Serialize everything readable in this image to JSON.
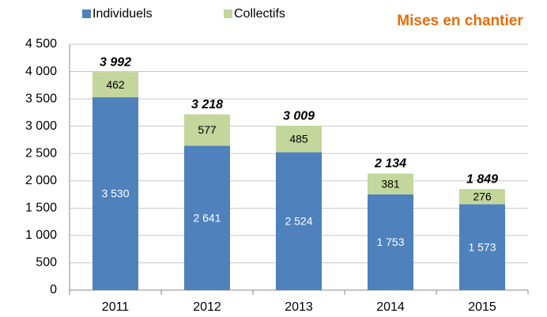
{
  "chart_data": {
    "type": "stacked_bar",
    "title": "Mises en chantier",
    "categories": [
      "2011",
      "2012",
      "2013",
      "2014",
      "2015"
    ],
    "series": [
      {
        "name": "Individuels",
        "color": "#4f81bd",
        "values": [
          3530,
          2641,
          2524,
          1753,
          1573
        ],
        "value_labels": [
          "3 530",
          "2 641",
          "2 524",
          "1 753",
          "1 573"
        ]
      },
      {
        "name": "Collectifs",
        "color": "#c3d69b",
        "values": [
          462,
          577,
          485,
          381,
          276
        ]
      }
    ],
    "totals": [
      3992,
      3218,
      3009,
      2134,
      1849
    ],
    "total_labels": [
      "3 992",
      "3 218",
      "3 009",
      "2 134",
      "1 849"
    ],
    "ylim": [
      0,
      4500
    ],
    "yticks": [
      0,
      500,
      {
        "value": 1000,
        "label": "1 000"
      },
      {
        "value": 1500,
        "label": "1 500"
      },
      {
        "value": 2000,
        "label": "2 000"
      },
      {
        "value": 2500,
        "label": "2 500"
      },
      {
        "value": 3000,
        "label": "3 000"
      },
      {
        "value": 3500,
        "label": "3 500"
      },
      {
        "value": 4000,
        "label": "4 000"
      },
      {
        "value": 4500,
        "label": "4 500"
      }
    ],
    "grid": true,
    "legend": "top"
  }
}
